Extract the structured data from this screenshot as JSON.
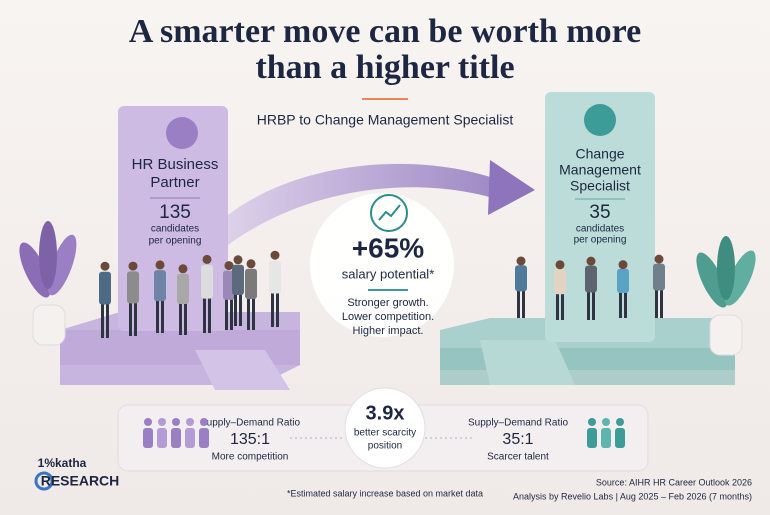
{
  "header": {
    "title_lines": [
      "A smarter move can be worth more",
      "than a higher title"
    ],
    "subtitle": "HRBP to Change Management Specialist"
  },
  "left_role": {
    "name_lines": [
      "HR Business",
      "Partner"
    ],
    "candidates": 135,
    "caption_lines": [
      "candidates",
      "per opening"
    ]
  },
  "right_role": {
    "name_lines": [
      "Change",
      "Management",
      "Specialist"
    ],
    "candidates": 35,
    "caption_lines": [
      "candidates",
      "per opening"
    ]
  },
  "center": {
    "headline": "+65%",
    "label": "salary potential*",
    "points": [
      "Stronger growth.",
      "Lower competition.",
      "Higher impact."
    ]
  },
  "comparison": {
    "left": {
      "label": "Supply–Demand Ratio",
      "ratio": "135:1",
      "note": "More competition"
    },
    "middle": {
      "value": "3.9x",
      "label_lines": [
        "better scarcity",
        "position"
      ]
    },
    "right": {
      "label": "Supply–Demand Ratio",
      "ratio": "35:1",
      "note": "Scarcer talent"
    }
  },
  "logo": {
    "top": "1%katha",
    "bottom": "RESEARCH"
  },
  "footer": {
    "footnote": "*Estimated salary increase based on market data",
    "source_lines": [
      "Source: AIHR HR Career Outlook 2026",
      "Analysis by Revelio Labs | Aug 2025 – Feb 2026 (7 months)"
    ]
  }
}
